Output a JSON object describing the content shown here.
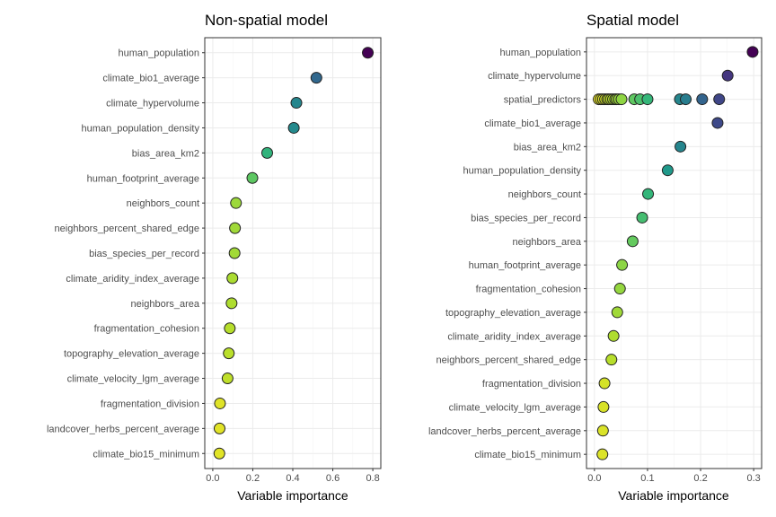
{
  "chart_data": [
    {
      "type": "scatter",
      "title": "Non-spatial model",
      "xlabel": "Variable importance",
      "xlim": [
        0,
        0.8
      ],
      "xticks": [
        "0.0",
        "0.2",
        "0.4",
        "0.6",
        "0.8"
      ],
      "grid": true,
      "colormap": "viridis",
      "categories": [
        "human_population",
        "climate_bio1_average",
        "climate_hypervolume",
        "human_population_density",
        "bias_area_km2",
        "human_footprint_average",
        "neighbors_count",
        "neighbors_percent_shared_edge",
        "bias_species_per_record",
        "climate_aridity_index_average",
        "neighbors_area",
        "fragmentation_cohesion",
        "topography_elevation_average",
        "climate_velocity_lgm_average",
        "fragmentation_division",
        "landcover_herbs_percent_average",
        "climate_bio15_minimum"
      ],
      "points": [
        {
          "category": "human_population",
          "x": 0.775
        },
        {
          "category": "climate_bio1_average",
          "x": 0.518
        },
        {
          "category": "climate_hypervolume",
          "x": 0.418
        },
        {
          "category": "human_population_density",
          "x": 0.405
        },
        {
          "category": "bias_area_km2",
          "x": 0.272
        },
        {
          "category": "human_footprint_average",
          "x": 0.198
        },
        {
          "category": "neighbors_count",
          "x": 0.116
        },
        {
          "category": "neighbors_percent_shared_edge",
          "x": 0.111
        },
        {
          "category": "bias_species_per_record",
          "x": 0.109
        },
        {
          "category": "climate_aridity_index_average",
          "x": 0.098
        },
        {
          "category": "neighbors_area",
          "x": 0.094
        },
        {
          "category": "fragmentation_cohesion",
          "x": 0.085
        },
        {
          "category": "topography_elevation_average",
          "x": 0.08
        },
        {
          "category": "climate_velocity_lgm_average",
          "x": 0.074
        },
        {
          "category": "fragmentation_division",
          "x": 0.036
        },
        {
          "category": "landcover_herbs_percent_average",
          "x": 0.034
        },
        {
          "category": "climate_bio15_minimum",
          "x": 0.033
        }
      ]
    },
    {
      "type": "scatter",
      "title": "Spatial model",
      "xlabel": "Variable importance",
      "xlim": [
        0,
        0.3
      ],
      "xticks": [
        "0.0",
        "0.1",
        "0.2",
        "0.3"
      ],
      "grid": true,
      "colormap": "viridis",
      "categories": [
        "human_population",
        "climate_hypervolume",
        "spatial_predictors",
        "climate_bio1_average",
        "bias_area_km2",
        "human_population_density",
        "neighbors_count",
        "bias_species_per_record",
        "neighbors_area",
        "human_footprint_average",
        "fragmentation_cohesion",
        "topography_elevation_average",
        "climate_aridity_index_average",
        "neighbors_percent_shared_edge",
        "fragmentation_division",
        "climate_velocity_lgm_average",
        "landcover_herbs_percent_average",
        "climate_bio15_minimum"
      ],
      "points": [
        {
          "category": "human_population",
          "x": 0.298
        },
        {
          "category": "climate_hypervolume",
          "x": 0.251
        },
        {
          "category": "spatial_predictors",
          "x": 0.008
        },
        {
          "category": "spatial_predictors",
          "x": 0.012
        },
        {
          "category": "spatial_predictors",
          "x": 0.016
        },
        {
          "category": "spatial_predictors",
          "x": 0.02
        },
        {
          "category": "spatial_predictors",
          "x": 0.024
        },
        {
          "category": "spatial_predictors",
          "x": 0.027
        },
        {
          "category": "spatial_predictors",
          "x": 0.031
        },
        {
          "category": "spatial_predictors",
          "x": 0.035
        },
        {
          "category": "spatial_predictors",
          "x": 0.039
        },
        {
          "category": "spatial_predictors",
          "x": 0.042
        },
        {
          "category": "spatial_predictors",
          "x": 0.046
        },
        {
          "category": "spatial_predictors",
          "x": 0.051
        },
        {
          "category": "spatial_predictors",
          "x": 0.075
        },
        {
          "category": "spatial_predictors",
          "x": 0.086
        },
        {
          "category": "spatial_predictors",
          "x": 0.1
        },
        {
          "category": "spatial_predictors",
          "x": 0.161
        },
        {
          "category": "spatial_predictors",
          "x": 0.172
        },
        {
          "category": "spatial_predictors",
          "x": 0.203
        },
        {
          "category": "spatial_predictors",
          "x": 0.235
        },
        {
          "category": "climate_bio1_average",
          "x": 0.232
        },
        {
          "category": "bias_area_km2",
          "x": 0.162
        },
        {
          "category": "human_population_density",
          "x": 0.138
        },
        {
          "category": "neighbors_count",
          "x": 0.101
        },
        {
          "category": "bias_species_per_record",
          "x": 0.09
        },
        {
          "category": "neighbors_area",
          "x": 0.072
        },
        {
          "category": "human_footprint_average",
          "x": 0.052
        },
        {
          "category": "fragmentation_cohesion",
          "x": 0.048
        },
        {
          "category": "topography_elevation_average",
          "x": 0.043
        },
        {
          "category": "climate_aridity_index_average",
          "x": 0.036
        },
        {
          "category": "neighbors_percent_shared_edge",
          "x": 0.032
        },
        {
          "category": "fragmentation_division",
          "x": 0.019
        },
        {
          "category": "climate_velocity_lgm_average",
          "x": 0.017
        },
        {
          "category": "landcover_herbs_percent_average",
          "x": 0.016
        },
        {
          "category": "climate_bio15_minimum",
          "x": 0.015
        }
      ]
    }
  ]
}
